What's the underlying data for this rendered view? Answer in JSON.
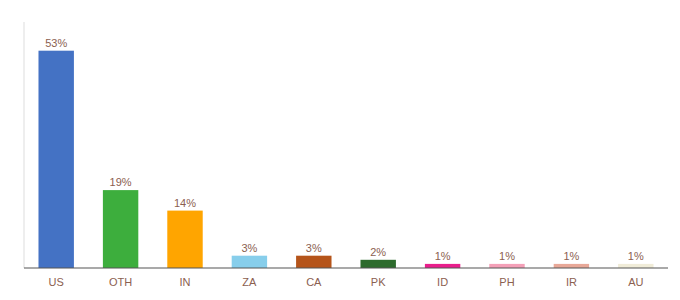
{
  "chart_data": {
    "type": "bar",
    "categories": [
      "US",
      "OTH",
      "IN",
      "ZA",
      "CA",
      "PK",
      "ID",
      "PH",
      "IR",
      "AU"
    ],
    "values": [
      53,
      19,
      14,
      3,
      3,
      2,
      1,
      1,
      1,
      1
    ],
    "value_labels": [
      "53%",
      "19%",
      "14%",
      "3%",
      "3%",
      "2%",
      "1%",
      "1%",
      "1%",
      "1%"
    ],
    "colors": [
      "#4472c4",
      "#3dae3d",
      "#ffa500",
      "#87ceeb",
      "#b5541a",
      "#2d6b2d",
      "#e91e8c",
      "#f4a0b8",
      "#e8a898",
      "#f0ecd8"
    ],
    "ylim": [
      0,
      60
    ],
    "data_labels": true,
    "tick_labels": "x"
  }
}
